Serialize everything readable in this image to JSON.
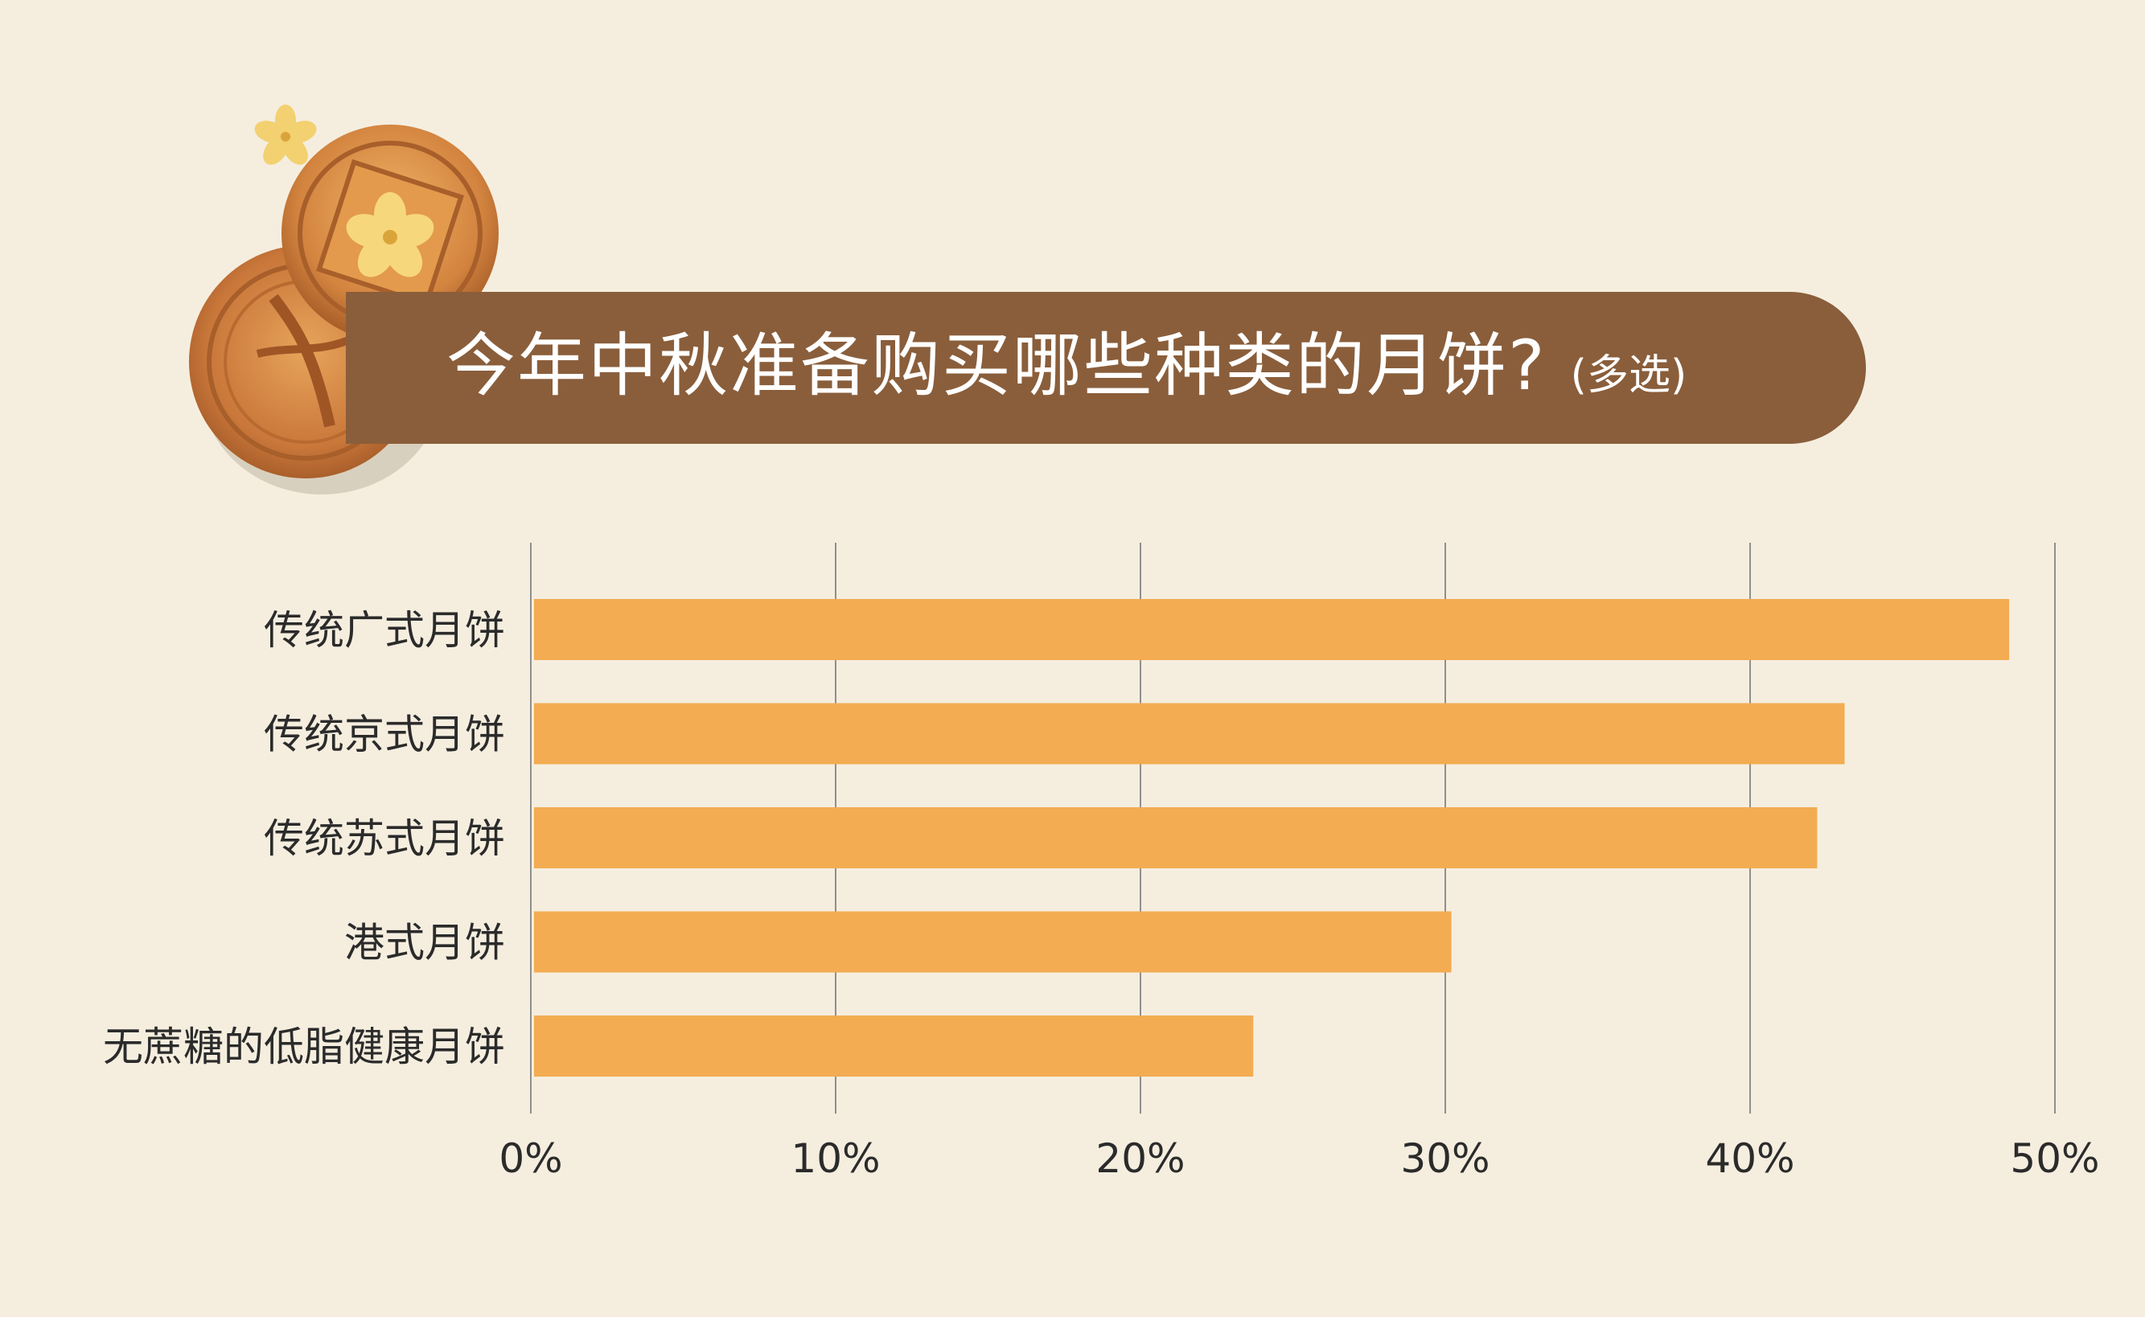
{
  "title": {
    "main": "今年中秋准备购买哪些种类的月饼?",
    "note": "(多选)"
  },
  "decoration": {
    "icons": [
      "mooncake-icon",
      "osmanthus-flower-icon"
    ]
  },
  "colors": {
    "background": "#F5EEDF",
    "banner": "#8A5E3B",
    "bar": "#F3AC52",
    "grid": "#8F8F8F",
    "label": "#2B2B2B"
  },
  "chart_data": {
    "type": "bar",
    "orientation": "horizontal",
    "categories": [
      "传统广式月饼",
      "传统京式月饼",
      "传统苏式月饼",
      "港式月饼",
      "无蔗糖的低脂健康月饼"
    ],
    "values": [
      48.5,
      43.1,
      42.2,
      30.2,
      23.7
    ],
    "unit": "%",
    "xlim": [
      0,
      50
    ],
    "xticks": [
      0,
      10,
      20,
      30,
      40,
      50
    ],
    "xtick_labels": [
      "0%",
      "10%",
      "20%",
      "30%",
      "40%",
      "50%"
    ],
    "grid": true,
    "legend": "none"
  }
}
